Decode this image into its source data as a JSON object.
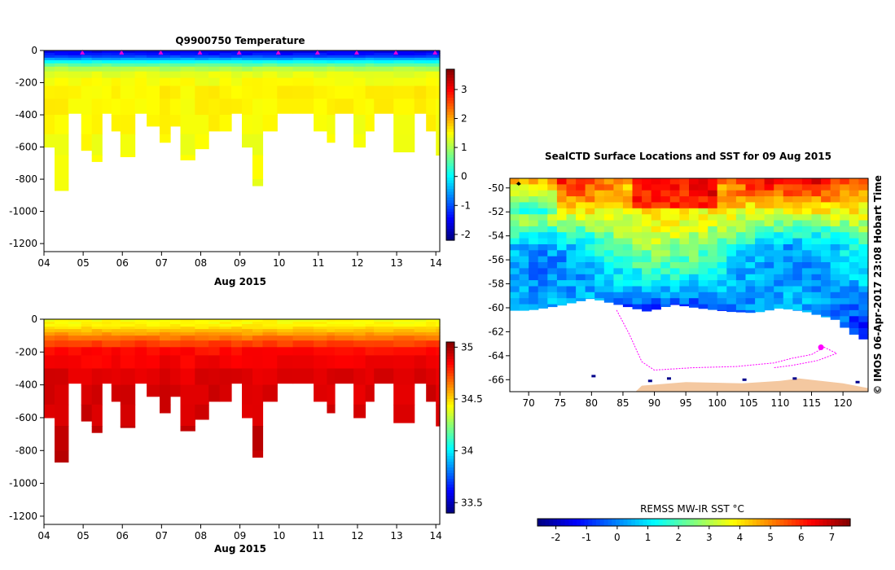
{
  "panels": {
    "temperature": {
      "title": "Q9900750  Temperature",
      "xlabel": "Aug 2015",
      "x_ticks": [
        "04",
        "05",
        "06",
        "07",
        "08",
        "09",
        "10",
        "11",
        "12",
        "13",
        "14"
      ],
      "y_ticks": [
        "0",
        "-200",
        "-400",
        "-600",
        "-800",
        "-1000",
        "-1200"
      ],
      "colorbar_ticks": [
        "3",
        "2",
        "1",
        "0",
        "-1",
        "-2"
      ],
      "colorbar_range": [
        -2.2,
        3.7
      ]
    },
    "salinity": {
      "xlabel": "Aug 2015",
      "x_ticks": [
        "04",
        "05",
        "06",
        "07",
        "08",
        "09",
        "10",
        "11",
        "12",
        "13",
        "14"
      ],
      "y_ticks": [
        "0",
        "-200",
        "-400",
        "-600",
        "-800",
        "-1000",
        "-1200"
      ],
      "colorbar_ticks": [
        "35",
        "34.5",
        "34",
        "33.5"
      ],
      "colorbar_range": [
        33.4,
        35.05
      ]
    },
    "map": {
      "title": "SealCTD Surface Locations and SST for 09 Aug 2015",
      "lat_ticks": [
        "-50",
        "-52",
        "-54",
        "-56",
        "-58",
        "-60",
        "-62",
        "-64",
        "-66"
      ],
      "lon_ticks": [
        "70",
        "75",
        "80",
        "85",
        "90",
        "95",
        "100",
        "105",
        "110",
        "115",
        "120"
      ],
      "colorbar_label": "REMSS MW-IR SST °C",
      "colorbar_ticks": [
        "-2",
        "-1",
        "0",
        "1",
        "2",
        "3",
        "4",
        "5",
        "6",
        "7"
      ],
      "colorbar_range": [
        -2.6,
        7.6
      ],
      "credit": "© IMOS 06-Apr-2017 23:08 Hobart Time"
    }
  },
  "colors": {
    "jet_low": "#00007f",
    "jet_high": "#7f0000",
    "land": "#f4c8a0",
    "track": "#ff00ff",
    "marker": "#dd00dd"
  },
  "chart_data": [
    {
      "type": "heatmap",
      "name": "temperature-section",
      "title": "Q9900750  Temperature",
      "xlabel": "Aug 2015",
      "ylabel": "",
      "xlim": [
        4.0,
        14.1
      ],
      "ylim": [
        -1250,
        0
      ],
      "units": "°C",
      "surface_marker_days": [
        4.98,
        5.98,
        6.98,
        7.98,
        8.98,
        9.98,
        10.98,
        11.98,
        12.98,
        13.98
      ],
      "profiles": [
        {
          "t0": 4.0,
          "t1": 4.27,
          "max_depth": 600
        },
        {
          "t0": 4.27,
          "t1": 4.62,
          "max_depth": 870
        },
        {
          "t0": 4.62,
          "t1": 4.95,
          "max_depth": 390
        },
        {
          "t0": 4.95,
          "t1": 5.22,
          "max_depth": 620
        },
        {
          "t0": 5.22,
          "t1": 5.48,
          "max_depth": 690
        },
        {
          "t0": 5.48,
          "t1": 5.72,
          "max_depth": 390
        },
        {
          "t0": 5.72,
          "t1": 5.95,
          "max_depth": 500
        },
        {
          "t0": 5.95,
          "t1": 6.32,
          "max_depth": 660
        },
        {
          "t0": 6.32,
          "t1": 6.62,
          "max_depth": 390
        },
        {
          "t0": 6.62,
          "t1": 6.95,
          "max_depth": 470
        },
        {
          "t0": 6.95,
          "t1": 7.22,
          "max_depth": 570
        },
        {
          "t0": 7.22,
          "t1": 7.48,
          "max_depth": 470
        },
        {
          "t0": 7.48,
          "t1": 7.85,
          "max_depth": 680
        },
        {
          "t0": 7.85,
          "t1": 8.2,
          "max_depth": 610
        },
        {
          "t0": 8.2,
          "t1": 8.48,
          "max_depth": 500
        },
        {
          "t0": 8.48,
          "t1": 8.78,
          "max_depth": 500
        },
        {
          "t0": 8.78,
          "t1": 9.05,
          "max_depth": 390
        },
        {
          "t0": 9.05,
          "t1": 9.32,
          "max_depth": 600
        },
        {
          "t0": 9.32,
          "t1": 9.58,
          "max_depth": 840
        },
        {
          "t0": 9.58,
          "t1": 9.95,
          "max_depth": 500
        },
        {
          "t0": 9.95,
          "t1": 10.35,
          "max_depth": 390
        },
        {
          "t0": 10.35,
          "t1": 10.88,
          "max_depth": 390
        },
        {
          "t0": 10.88,
          "t1": 11.22,
          "max_depth": 500
        },
        {
          "t0": 11.22,
          "t1": 11.42,
          "max_depth": 570
        },
        {
          "t0": 11.42,
          "t1": 11.9,
          "max_depth": 390
        },
        {
          "t0": 11.9,
          "t1": 12.2,
          "max_depth": 600
        },
        {
          "t0": 12.2,
          "t1": 12.42,
          "max_depth": 500
        },
        {
          "t0": 12.42,
          "t1": 12.92,
          "max_depth": 390
        },
        {
          "t0": 12.92,
          "t1": 13.45,
          "max_depth": 630
        },
        {
          "t0": 13.45,
          "t1": 13.75,
          "max_depth": 390
        },
        {
          "t0": 13.75,
          "t1": 14.0,
          "max_depth": 500
        },
        {
          "t0": 14.0,
          "t1": 14.1,
          "max_depth": 650
        }
      ],
      "profile_levels": [
        {
          "depth": 0,
          "value": -1.6
        },
        {
          "depth": 30,
          "value": -1.3
        },
        {
          "depth": 80,
          "value": 0.4
        },
        {
          "depth": 130,
          "value": 1.3
        },
        {
          "depth": 250,
          "value": 1.55
        },
        {
          "depth": 900,
          "value": 1.35
        }
      ],
      "colorbar": {
        "min": -2.2,
        "max": 3.7,
        "ticks": [
          3,
          2,
          1,
          0,
          -1,
          -2
        ]
      }
    },
    {
      "type": "heatmap",
      "name": "salinity-section",
      "title": "",
      "xlabel": "Aug 2015",
      "ylabel": "",
      "xlim": [
        4.0,
        14.1
      ],
      "ylim": [
        -1250,
        0
      ],
      "units": "PSU",
      "profiles": "same as temperature-section",
      "profile_levels": [
        {
          "depth": 0,
          "value": 34.42
        },
        {
          "depth": 40,
          "value": 34.45
        },
        {
          "depth": 100,
          "value": 34.62
        },
        {
          "depth": 180,
          "value": 34.82
        },
        {
          "depth": 320,
          "value": 34.89
        },
        {
          "depth": 900,
          "value": 34.95
        }
      ],
      "colorbar": {
        "min": 33.4,
        "max": 35.05,
        "ticks": [
          35,
          34.5,
          34,
          33.5
        ]
      }
    },
    {
      "type": "heatmap",
      "name": "sst-map",
      "title": "SealCTD Surface Locations and SST for 09 Aug 2015",
      "xlim": [
        67,
        124
      ],
      "ylim": [
        -67,
        -49.2
      ],
      "xlabel": "",
      "ylabel": "",
      "units": "°C",
      "antarctic_coast_lat": [
        [
          67,
          -60.2
        ],
        [
          70,
          -60.2
        ],
        [
          75,
          -59.8
        ],
        [
          80,
          -59.2
        ],
        [
          85,
          -59.8
        ],
        [
          89,
          -60.3
        ],
        [
          93,
          -59.7
        ],
        [
          97,
          -60.0
        ],
        [
          102,
          -60.3
        ],
        [
          106,
          -60.4
        ],
        [
          110,
          -60.0
        ],
        [
          114,
          -60.3
        ],
        [
          119,
          -61.0
        ],
        [
          121,
          -62.0
        ],
        [
          124,
          -62.8
        ]
      ],
      "sst_zonal_bands": [
        {
          "lat": -49.2,
          "sst": 5.5
        },
        {
          "lat": -51.0,
          "sst": 4.5
        },
        {
          "lat": -53.0,
          "sst": 3.0
        },
        {
          "lat": -55.0,
          "sst": 1.5
        },
        {
          "lat": -57.0,
          "sst": 0.8
        },
        {
          "lat": -59.0,
          "sst": 0.3
        },
        {
          "lat": -61.0,
          "sst": -0.8
        }
      ],
      "colorbar": {
        "min": -2.6,
        "max": 7.6,
        "ticks": [
          -2,
          -1,
          0,
          1,
          2,
          3,
          4,
          5,
          6,
          7
        ],
        "label": "REMSS MW-IR SST °C"
      }
    }
  ]
}
